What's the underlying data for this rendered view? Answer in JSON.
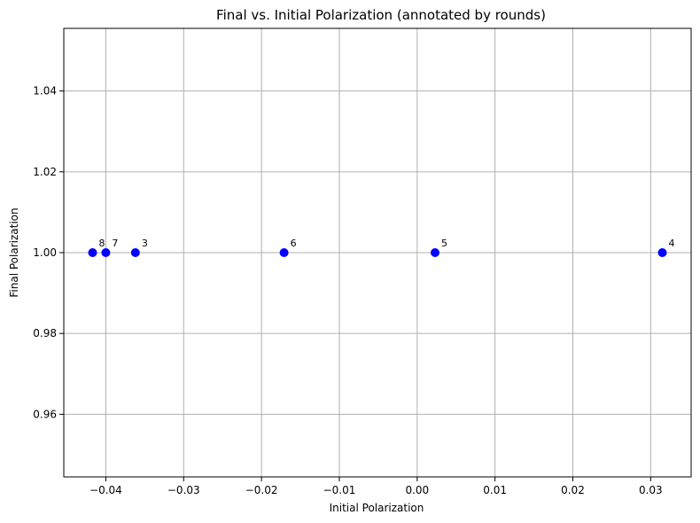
{
  "chart_data": {
    "type": "scatter",
    "title": "Final vs. Initial Polarization (annotated by rounds)",
    "xlabel": "Initial Polarization",
    "ylabel": "Final Polarization",
    "xlim": [
      -0.0454,
      0.0352
    ],
    "ylim": [
      0.9445,
      1.0555
    ],
    "grid": true,
    "x_ticks": [
      -0.04,
      -0.03,
      -0.02,
      -0.01,
      0.0,
      0.01,
      0.02,
      0.03
    ],
    "x_tick_labels": [
      "−0.04",
      "−0.03",
      "−0.02",
      "−0.01",
      "0.00",
      "0.01",
      "0.02",
      "0.03"
    ],
    "y_ticks": [
      0.96,
      0.98,
      1.0,
      1.02,
      1.04
    ],
    "y_tick_labels": [
      "0.96",
      "0.98",
      "1.00",
      "1.02",
      "1.04"
    ],
    "marker_color": "#0000ff",
    "points": [
      {
        "x": -0.0417,
        "y": 1.0,
        "label": "8"
      },
      {
        "x": -0.04,
        "y": 1.0,
        "label": "7"
      },
      {
        "x": -0.0362,
        "y": 1.0,
        "label": "3"
      },
      {
        "x": -0.0171,
        "y": 1.0,
        "label": "6"
      },
      {
        "x": 0.0023,
        "y": 1.0,
        "label": "5"
      },
      {
        "x": 0.0315,
        "y": 1.0,
        "label": "4"
      }
    ]
  }
}
